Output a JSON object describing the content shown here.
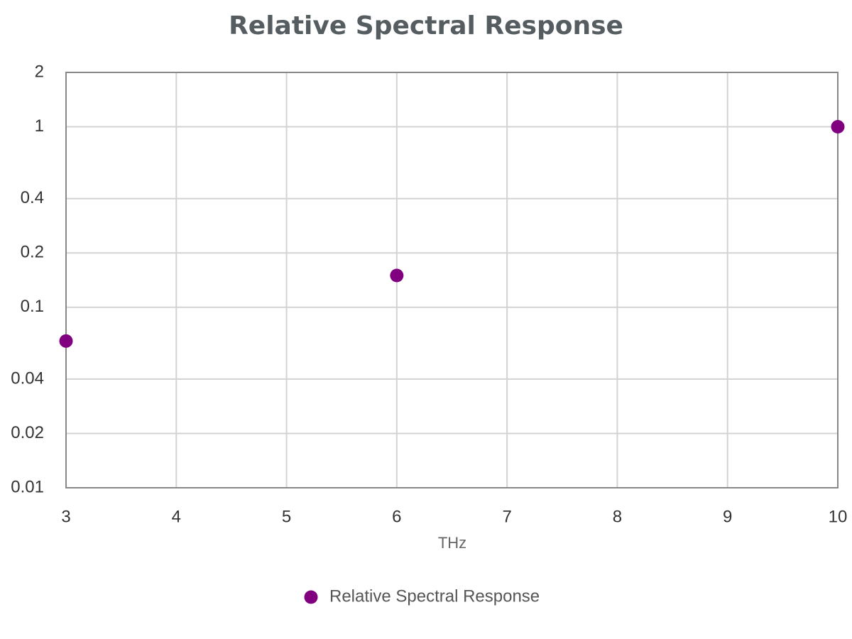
{
  "chart_data": {
    "type": "scatter",
    "title": "Relative Spectral Response",
    "x_label": "THz",
    "series": [
      {
        "name": "Relative Spectral Response",
        "color": "#800080",
        "x": [
          3,
          6,
          10
        ],
        "values": [
          0.065,
          0.15,
          1
        ]
      }
    ],
    "xlim": [
      3,
      10
    ],
    "xticks": [
      3,
      4,
      5,
      6,
      7,
      8,
      9,
      10
    ],
    "ylim": [
      0.01,
      2
    ],
    "yticks": [
      0.01,
      0.02,
      0.04,
      0.1,
      0.2,
      0.4,
      1,
      2
    ],
    "y_scale": "log",
    "grid": true,
    "legend": "bottom"
  }
}
